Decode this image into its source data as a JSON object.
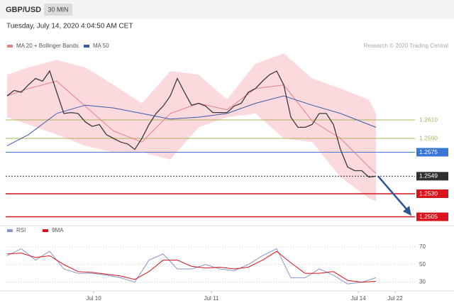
{
  "chart_data": {
    "type": "line",
    "title": "GBP/USD",
    "timeframe": "30 MIN",
    "subtitle": "Tuesday, July 14, 2020 4:04:50 AM CET",
    "credit": "Research © 2020 Trading Central",
    "xlim": [
      -0.2,
      57.5
    ],
    "xticks": [
      {
        "value": 12.2,
        "label": "Jul 10"
      },
      {
        "value": 28.8,
        "label": "Jul 11"
      },
      {
        "value": 49.5,
        "label": "Jul 14"
      },
      {
        "value": 54.7,
        "label": "Jul 22"
      }
    ],
    "ylim": [
      1.25,
      1.27
    ],
    "price": {
      "color": "#3a3a3a",
      "x": [
        0,
        1,
        2,
        3,
        4,
        5,
        6,
        7,
        8,
        9,
        10,
        11,
        12,
        13,
        14,
        15,
        16,
        17,
        18,
        19,
        20,
        21,
        22,
        23,
        24,
        25,
        26,
        27,
        28,
        29,
        30,
        31,
        32,
        33,
        34,
        35,
        36,
        37,
        38,
        39,
        40,
        41,
        42,
        43,
        44,
        45,
        46,
        47,
        48,
        49,
        50,
        51,
        52
      ],
      "values": [
        1.2636,
        1.2642,
        1.264,
        1.2648,
        1.2655,
        1.2652,
        1.2663,
        1.264,
        1.2617,
        1.2618,
        1.2617,
        1.2608,
        1.2603,
        1.2605,
        1.2594,
        1.259,
        1.2586,
        1.2584,
        1.2578,
        1.259,
        1.2605,
        1.2617,
        1.2625,
        1.2636,
        1.2655,
        1.264,
        1.2626,
        1.2628,
        1.2625,
        1.2618,
        1.2618,
        1.2618,
        1.2625,
        1.2628,
        1.264,
        1.2644,
        1.2652,
        1.2659,
        1.2663,
        1.2648,
        1.2613,
        1.2602,
        1.2602,
        1.2605,
        1.2617,
        1.2617,
        1.2605,
        1.2578,
        1.2559,
        1.2555,
        1.2555,
        1.2548,
        1.2549
      ]
    },
    "series": [
      {
        "name": "MA 20 + Bollinger Bands",
        "color": "#e57f88",
        "band_color": "#fbd9dc",
        "x": [
          0,
          3,
          7,
          11,
          15,
          19,
          23,
          27,
          31,
          35,
          39,
          43,
          47,
          51,
          52
        ],
        "values": [
          1.2636,
          1.2644,
          1.2652,
          1.2625,
          1.2598,
          1.2586,
          1.2617,
          1.2628,
          1.2621,
          1.2644,
          1.2648,
          1.2609,
          1.259,
          1.2559,
          1.2552
        ],
        "upper": [
          1.2659,
          1.2667,
          1.2675,
          1.2667,
          1.2648,
          1.2628,
          1.2663,
          1.2659,
          1.2632,
          1.2671,
          1.2682,
          1.2655,
          1.2644,
          1.2632,
          1.2617
        ],
        "lower": [
          1.2613,
          1.2605,
          1.2594,
          1.2582,
          1.2575,
          1.2575,
          1.2567,
          1.2602,
          1.2613,
          1.2617,
          1.259,
          1.2586,
          1.2548,
          1.2525,
          1.2522
        ]
      },
      {
        "name": "MA 50",
        "color": "#3d5aa8",
        "x": [
          0,
          3,
          7,
          11,
          15,
          19,
          23,
          27,
          31,
          35,
          39,
          43,
          47,
          51,
          52
        ],
        "values": [
          1.2582,
          1.2594,
          1.2617,
          1.2626,
          1.2623,
          1.2617,
          1.2611,
          1.2613,
          1.2617,
          1.2628,
          1.2636,
          1.2626,
          1.2617,
          1.2605,
          1.2602
        ]
      }
    ],
    "levels": [
      {
        "value": 1.261,
        "label": "1.2610",
        "color": "#a8b45a",
        "boxed": false
      },
      {
        "value": 1.259,
        "label": "1.2590",
        "color": "#a8b45a",
        "boxed": false
      },
      {
        "value": 1.2575,
        "label": "1.2575",
        "color": "#3a78d8",
        "boxed": true
      },
      {
        "value": 1.2549,
        "label": "1.2549",
        "color": "#2f2f2f",
        "boxed": true
      },
      {
        "value": 1.253,
        "label": "1.2530",
        "color": "#d9141c",
        "boxed": true
      },
      {
        "value": 1.2505,
        "label": "1.2505",
        "color": "#d9141c",
        "boxed": true
      }
    ],
    "rsi": {
      "ylim": [
        20,
        78
      ],
      "yticks": [
        70,
        50,
        30
      ],
      "x": [
        0,
        2,
        4,
        6,
        8,
        10,
        12,
        14,
        16,
        18,
        20,
        22,
        24,
        26,
        28,
        30,
        32,
        34,
        36,
        38,
        40,
        42,
        44,
        46,
        48,
        50,
        52
      ],
      "series": [
        {
          "name": "RSI",
          "color": "#8a96c8",
          "values": [
            60,
            68,
            55,
            65,
            45,
            40,
            40,
            38,
            35,
            30,
            55,
            62,
            45,
            45,
            50,
            45,
            43,
            50,
            60,
            68,
            35,
            35,
            45,
            38,
            28,
            30,
            35
          ]
        },
        {
          "name": "9MA",
          "color": "#d9141c",
          "values": [
            62,
            63,
            58,
            60,
            50,
            42,
            41,
            39,
            37,
            33,
            42,
            55,
            55,
            48,
            46,
            47,
            45,
            47,
            55,
            65,
            52,
            40,
            40,
            42,
            32,
            30,
            31
          ]
        }
      ]
    }
  }
}
